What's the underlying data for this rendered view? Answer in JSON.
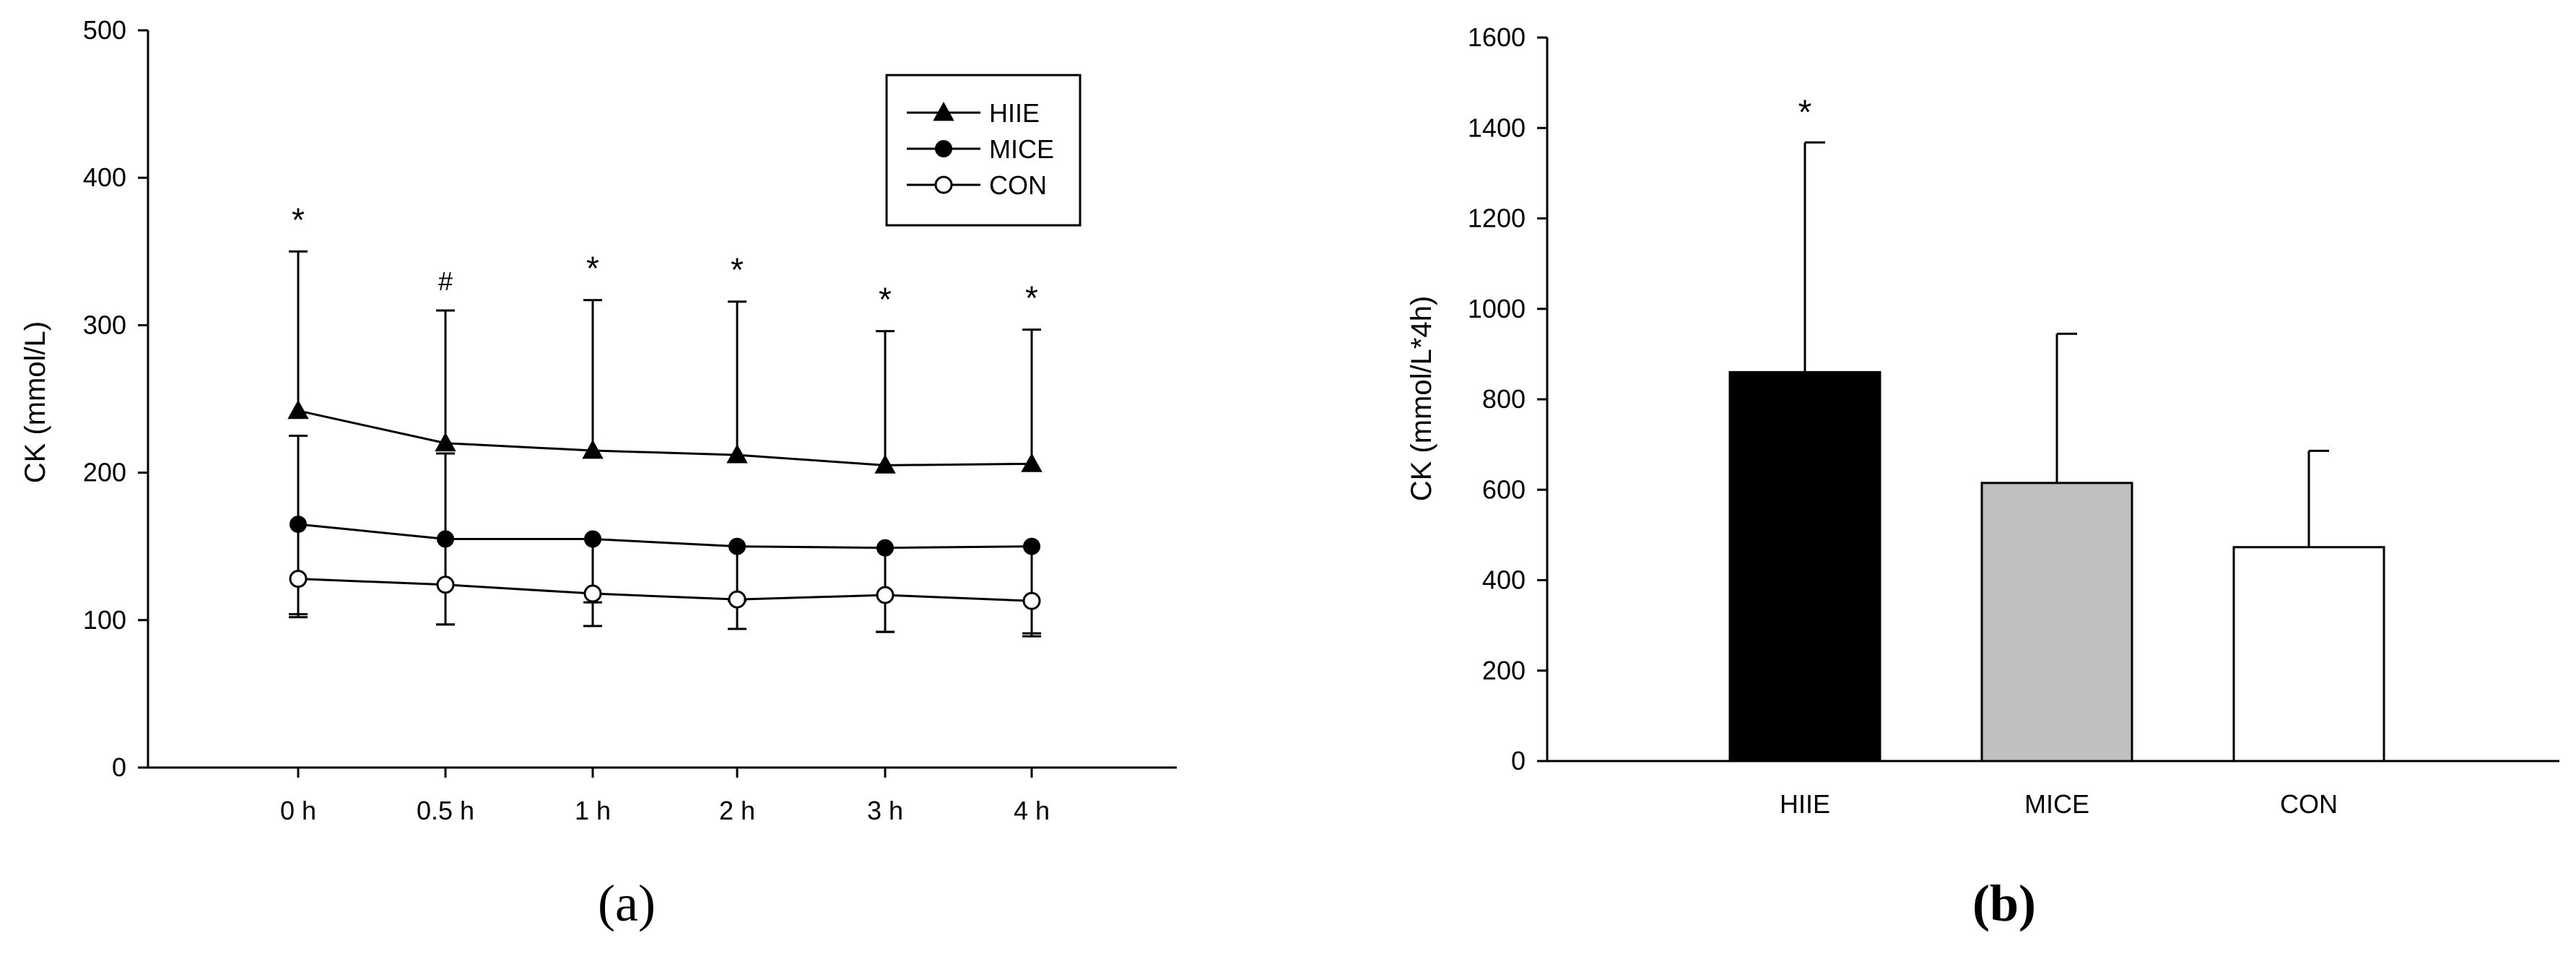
{
  "chart_data": [
    {
      "type": "line",
      "panel_label": "(a)",
      "categories": [
        "0 h",
        "0.5 h",
        "1 h",
        "2 h",
        "3 h",
        "4 h"
      ],
      "ylabel": "CK (mmol/L)",
      "xlabel": "",
      "ylim": [
        0,
        500
      ],
      "yticks": [
        0,
        100,
        200,
        300,
        400,
        500
      ],
      "grid": false,
      "legend": {
        "placement": "top-right",
        "entries": [
          "HIIE",
          "MICE",
          "CON"
        ]
      },
      "series": [
        {
          "name": "HIIE",
          "marker": "filled-triangle",
          "values": [
            242,
            220,
            215,
            212,
            205,
            206
          ],
          "error_up": [
            108,
            90,
            102,
            104,
            91,
            91
          ],
          "error_down": [
            0,
            0,
            0,
            0,
            0,
            0
          ]
        },
        {
          "name": "MICE",
          "marker": "filled-circle",
          "values": [
            165,
            155,
            155,
            150,
            149,
            150
          ],
          "error_up": [
            60,
            58,
            0,
            0,
            0,
            0
          ],
          "error_down": [
            63,
            58,
            43,
            37,
            57,
            61
          ]
        },
        {
          "name": "CON",
          "marker": "open-circle",
          "values": [
            128,
            124,
            118,
            114,
            117,
            113
          ],
          "error_up": [
            0,
            0,
            0,
            0,
            0,
            0
          ],
          "error_down": [
            24,
            27,
            22,
            20,
            25,
            22
          ]
        }
      ],
      "annotations": [
        "*",
        "#",
        "*",
        "*",
        "*",
        "*"
      ]
    },
    {
      "type": "bar",
      "panel_label": "(b)",
      "categories": [
        "HIIE",
        "MICE",
        "CON"
      ],
      "values": [
        860,
        615,
        473
      ],
      "error_up": [
        508,
        330,
        213
      ],
      "colors": [
        "#000000",
        "#c0c0c0",
        "#ffffff"
      ],
      "ylabel": "CK (mmol/L*4h)",
      "xlabel": "",
      "ylim": [
        0,
        1600
      ],
      "yticks": [
        0,
        200,
        400,
        600,
        800,
        1000,
        1200,
        1400,
        1600
      ],
      "grid": false,
      "annotations": [
        "*",
        "",
        ""
      ]
    }
  ]
}
